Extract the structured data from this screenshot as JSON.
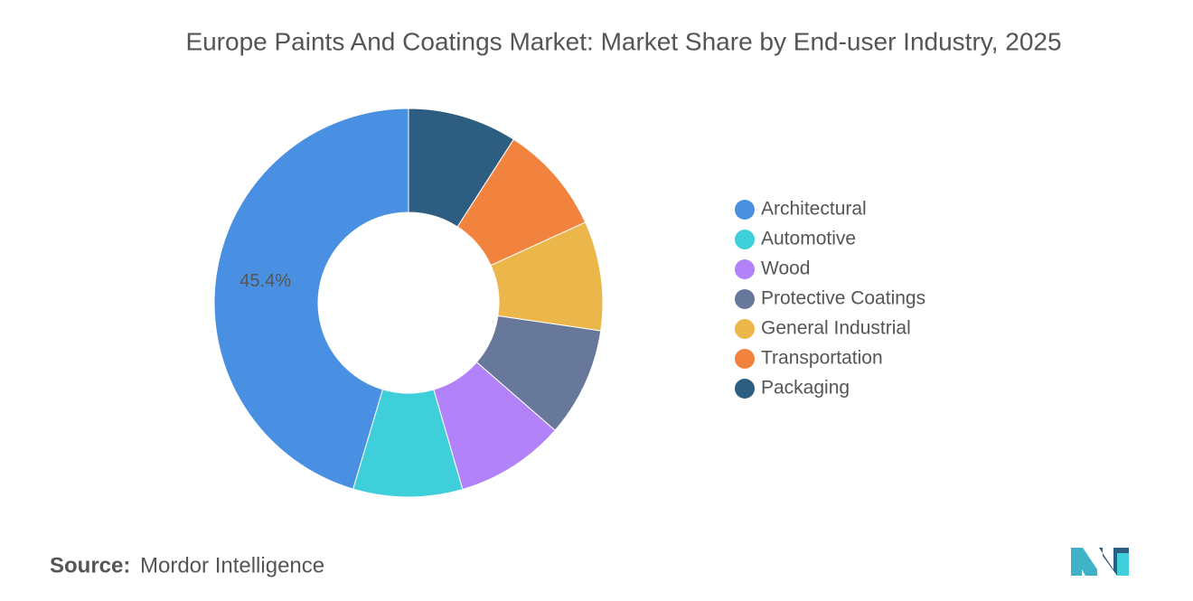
{
  "chart_data": {
    "type": "donut",
    "title": "Europe Paints And Coatings Market: Market Share by End-user Industry, 2025",
    "categories": [
      "Architectural",
      "Automotive",
      "Wood",
      "Protective Coatings",
      "General Industrial",
      "Transportation",
      "Packaging"
    ],
    "values": [
      45.4,
      9.1,
      9.1,
      9.1,
      9.1,
      9.1,
      9.1
    ],
    "value_labels": [
      "45.4%",
      null,
      null,
      null,
      null,
      null,
      null
    ],
    "colors": [
      "#4a90e2",
      "#3fcfda",
      "#b283f8",
      "#67789a",
      "#ebb64a",
      "#f2833f",
      "#2e5d82"
    ],
    "legend": "right"
  },
  "source_label": "Source:",
  "source": "Mordor Intelligence"
}
